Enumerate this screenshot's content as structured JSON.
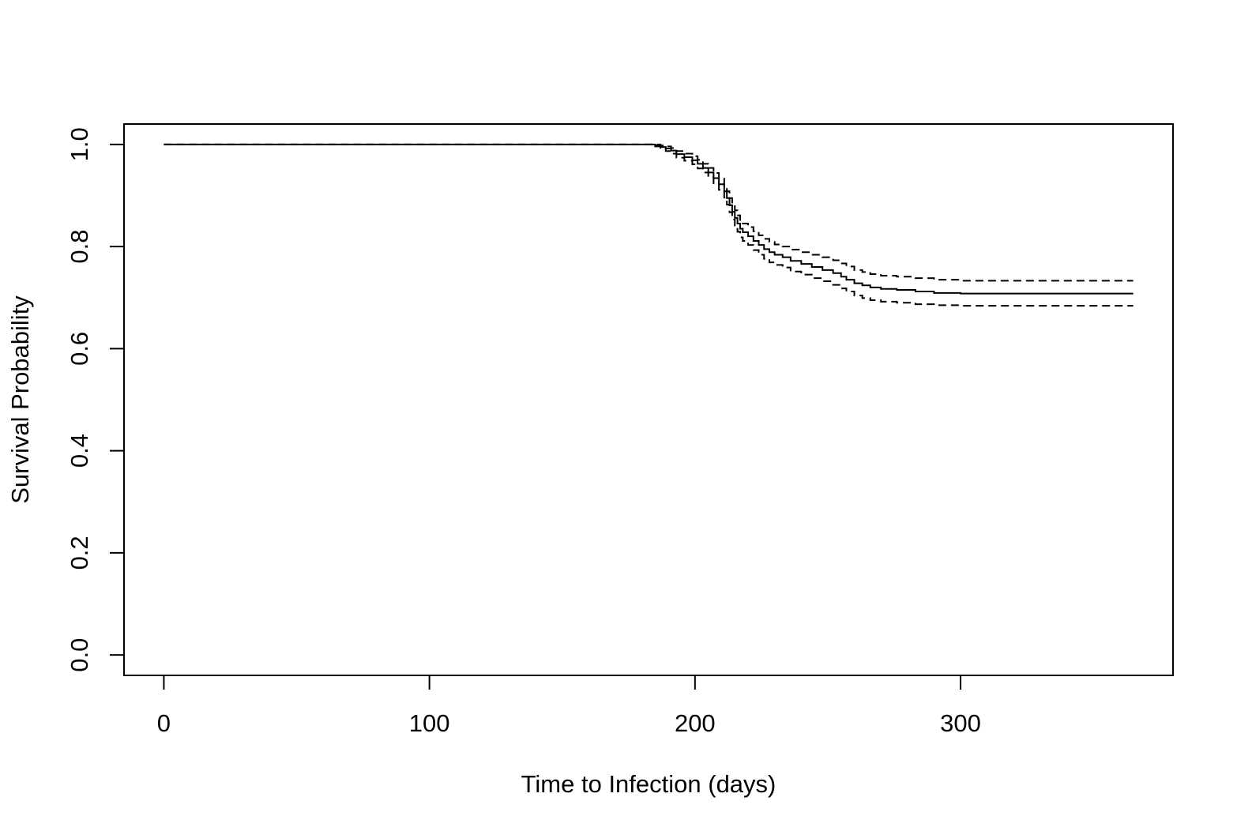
{
  "chart_data": {
    "type": "line",
    "title": "",
    "xlabel": "Time to Infection (days)",
    "ylabel": "Survival Probability",
    "xlim": [
      -15,
      380
    ],
    "ylim": [
      -0.04,
      1.04
    ],
    "x_ticks": [
      0,
      100,
      200,
      300
    ],
    "x_tick_labels": [
      "0",
      "100",
      "200",
      "300"
    ],
    "y_ticks": [
      0.0,
      0.2,
      0.4,
      0.6,
      0.8,
      1.0
    ],
    "y_tick_labels": [
      "0.0",
      "0.2",
      "0.4",
      "0.6",
      "0.8",
      "1.0"
    ],
    "grid": false,
    "legend": "none",
    "step": true,
    "colors": {
      "line": "#000000",
      "axis": "#000000",
      "background": "#ffffff"
    },
    "series": [
      {
        "style": "solid",
        "x": [
          0,
          185,
          187,
          189,
          191,
          193,
          196,
          199,
          201,
          203,
          205,
          207,
          209,
          211,
          212,
          213,
          214,
          215,
          216,
          217,
          218,
          220,
          222,
          224,
          226,
          228,
          230,
          233,
          236,
          240,
          244,
          248,
          252,
          255,
          257,
          260,
          263,
          266,
          270,
          276,
          283,
          290,
          300,
          365
        ],
        "y": [
          1.0,
          0.998,
          0.995,
          0.992,
          0.988,
          0.981,
          0.975,
          0.969,
          0.962,
          0.954,
          0.945,
          0.934,
          0.922,
          0.908,
          0.895,
          0.881,
          0.868,
          0.856,
          0.845,
          0.835,
          0.828,
          0.82,
          0.811,
          0.803,
          0.795,
          0.789,
          0.784,
          0.779,
          0.772,
          0.766,
          0.76,
          0.754,
          0.748,
          0.741,
          0.735,
          0.728,
          0.724,
          0.72,
          0.717,
          0.715,
          0.712,
          0.709,
          0.708,
          0.708
        ]
      },
      {
        "style": "dashed",
        "x": [
          0,
          185,
          187,
          189,
          191,
          193,
          196,
          199,
          201,
          203,
          205,
          207,
          209,
          211,
          212,
          213,
          214,
          215,
          216,
          217,
          218,
          220,
          222,
          224,
          226,
          228,
          230,
          233,
          236,
          240,
          244,
          248,
          252,
          255,
          257,
          260,
          263,
          266,
          270,
          276,
          283,
          290,
          300,
          365
        ],
        "y": [
          1.0,
          1.0,
          0.998,
          0.996,
          0.993,
          0.987,
          0.982,
          0.977,
          0.97,
          0.962,
          0.954,
          0.944,
          0.933,
          0.92,
          0.908,
          0.895,
          0.883,
          0.871,
          0.861,
          0.852,
          0.845,
          0.838,
          0.83,
          0.822,
          0.815,
          0.809,
          0.804,
          0.8,
          0.794,
          0.789,
          0.784,
          0.779,
          0.773,
          0.767,
          0.761,
          0.754,
          0.75,
          0.746,
          0.743,
          0.741,
          0.738,
          0.735,
          0.733,
          0.733
        ]
      },
      {
        "style": "dashed",
        "x": [
          0,
          185,
          187,
          189,
          191,
          193,
          196,
          199,
          201,
          203,
          205,
          207,
          209,
          211,
          212,
          213,
          214,
          215,
          216,
          217,
          218,
          220,
          222,
          224,
          226,
          228,
          230,
          233,
          236,
          240,
          244,
          248,
          252,
          255,
          257,
          260,
          263,
          266,
          270,
          276,
          283,
          290,
          300,
          365
        ],
        "y": [
          1.0,
          0.996,
          0.991,
          0.987,
          0.982,
          0.974,
          0.968,
          0.961,
          0.953,
          0.945,
          0.936,
          0.924,
          0.911,
          0.896,
          0.882,
          0.867,
          0.853,
          0.841,
          0.829,
          0.818,
          0.811,
          0.803,
          0.793,
          0.784,
          0.776,
          0.769,
          0.764,
          0.759,
          0.751,
          0.745,
          0.738,
          0.732,
          0.725,
          0.718,
          0.712,
          0.704,
          0.699,
          0.695,
          0.692,
          0.69,
          0.687,
          0.685,
          0.684,
          0.684
        ]
      }
    ]
  }
}
